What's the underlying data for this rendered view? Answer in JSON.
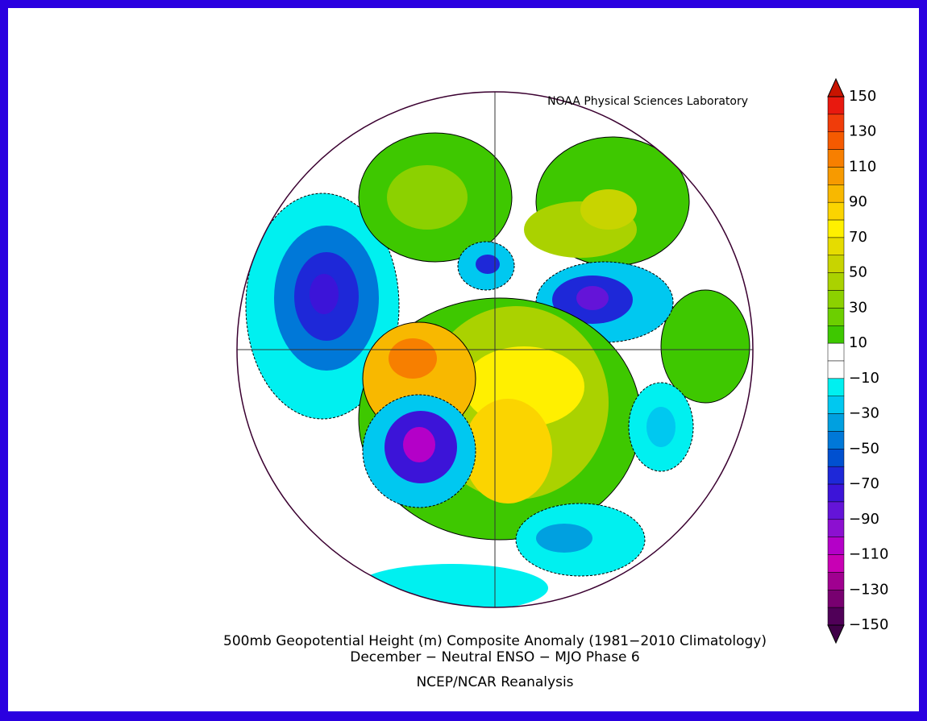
{
  "credit": "NOAA Physical Sciences Laboratory",
  "title_lines": [
    "500mb Geopotential Height (m) Composite Anomaly (1981−2010 Climatology)",
    "December − Neutral ENSO − MJO Phase 6"
  ],
  "source": "NCEP/NCAR Reanalysis",
  "colorbar": {
    "labels": [
      "150",
      "130",
      "110",
      "90",
      "70",
      "50",
      "30",
      "10",
      "−10",
      "−30",
      "−50",
      "−70",
      "−90",
      "−110",
      "−130",
      "−150"
    ],
    "colors": [
      "#e8190f",
      "#f03c0a",
      "#f55a00",
      "#f77f00",
      "#f79a00",
      "#f8b800",
      "#fbd400",
      "#fff000",
      "#e6dc00",
      "#c8d400",
      "#aad200",
      "#8cd100",
      "#6ccf00",
      "#3ec800",
      "#ffffff",
      "#ffffff",
      "#00f0f0",
      "#00c8f0",
      "#00a0e0",
      "#0078d8",
      "#0050d0",
      "#1e28d8",
      "#3c14d8",
      "#6414d8",
      "#8c10d0",
      "#b400c8",
      "#c800b4",
      "#a00090",
      "#780070",
      "#500058"
    ],
    "over": "#c81400",
    "under": "#400048"
  }
}
